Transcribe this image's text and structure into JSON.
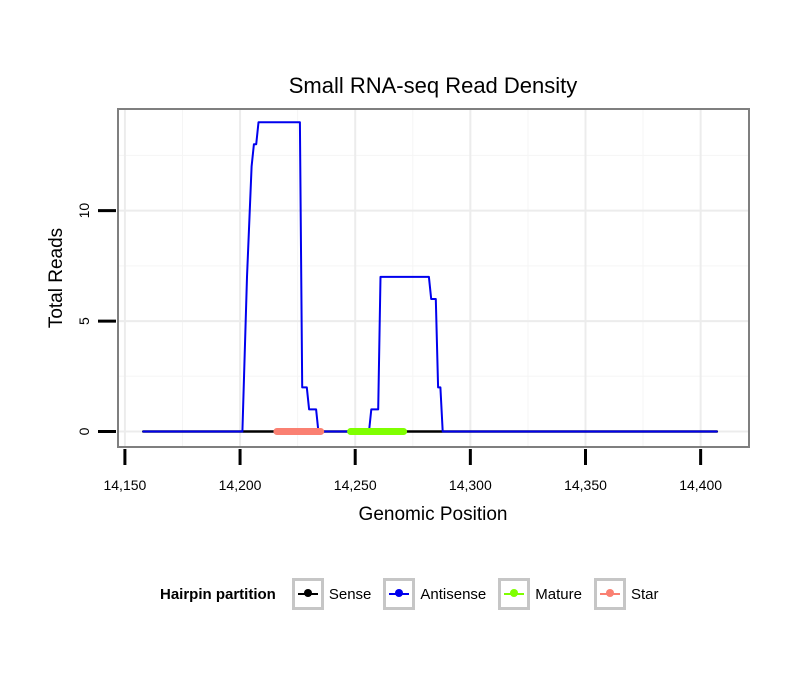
{
  "chart_data": {
    "type": "line",
    "title": "Small RNA-seq Read Density",
    "xlabel": "Genomic Position",
    "ylabel": "Total Reads",
    "xlim": [
      14147,
      14421
    ],
    "ylim": [
      -0.7,
      14.6
    ],
    "x_ticks": [
      14150,
      14200,
      14250,
      14300,
      14350,
      14400
    ],
    "x_tick_labels": [
      "14,150",
      "14,200",
      "14,250",
      "14,300",
      "14,350",
      "14,400"
    ],
    "y_ticks": [
      0,
      5,
      10
    ],
    "y_tick_labels": [
      "0",
      "5",
      "10"
    ],
    "series": [
      {
        "name": "Sense",
        "color": "#000000",
        "x": [
          14158,
          14407
        ],
        "values": [
          0,
          0
        ]
      },
      {
        "name": "Antisense",
        "color": "#0000ee",
        "x": [
          14158,
          14201,
          14203,
          14205,
          14206,
          14207,
          14208,
          14209,
          14210,
          14226,
          14227,
          14228,
          14229,
          14230,
          14233,
          14234,
          14236,
          14256,
          14257,
          14258,
          14260,
          14261,
          14282,
          14283,
          14285,
          14286,
          14287,
          14288,
          14290,
          14407
        ],
        "values": [
          0,
          0,
          7,
          12,
          13,
          13,
          14,
          14,
          14,
          14,
          2,
          2,
          2,
          1,
          1,
          0,
          0,
          0,
          1,
          1,
          1,
          7,
          7,
          6,
          6,
          2,
          2,
          0,
          0,
          0
        ]
      },
      {
        "name": "Mature",
        "color": "#7fff00",
        "x": [
          14248,
          14271
        ],
        "values": [
          0,
          0
        ]
      },
      {
        "name": "Star",
        "color": "#fa8072",
        "x": [
          14216,
          14235
        ],
        "values": [
          0,
          0
        ]
      }
    ],
    "legend": {
      "title": "Hairpin partition",
      "position": "bottom"
    },
    "grid": true
  }
}
